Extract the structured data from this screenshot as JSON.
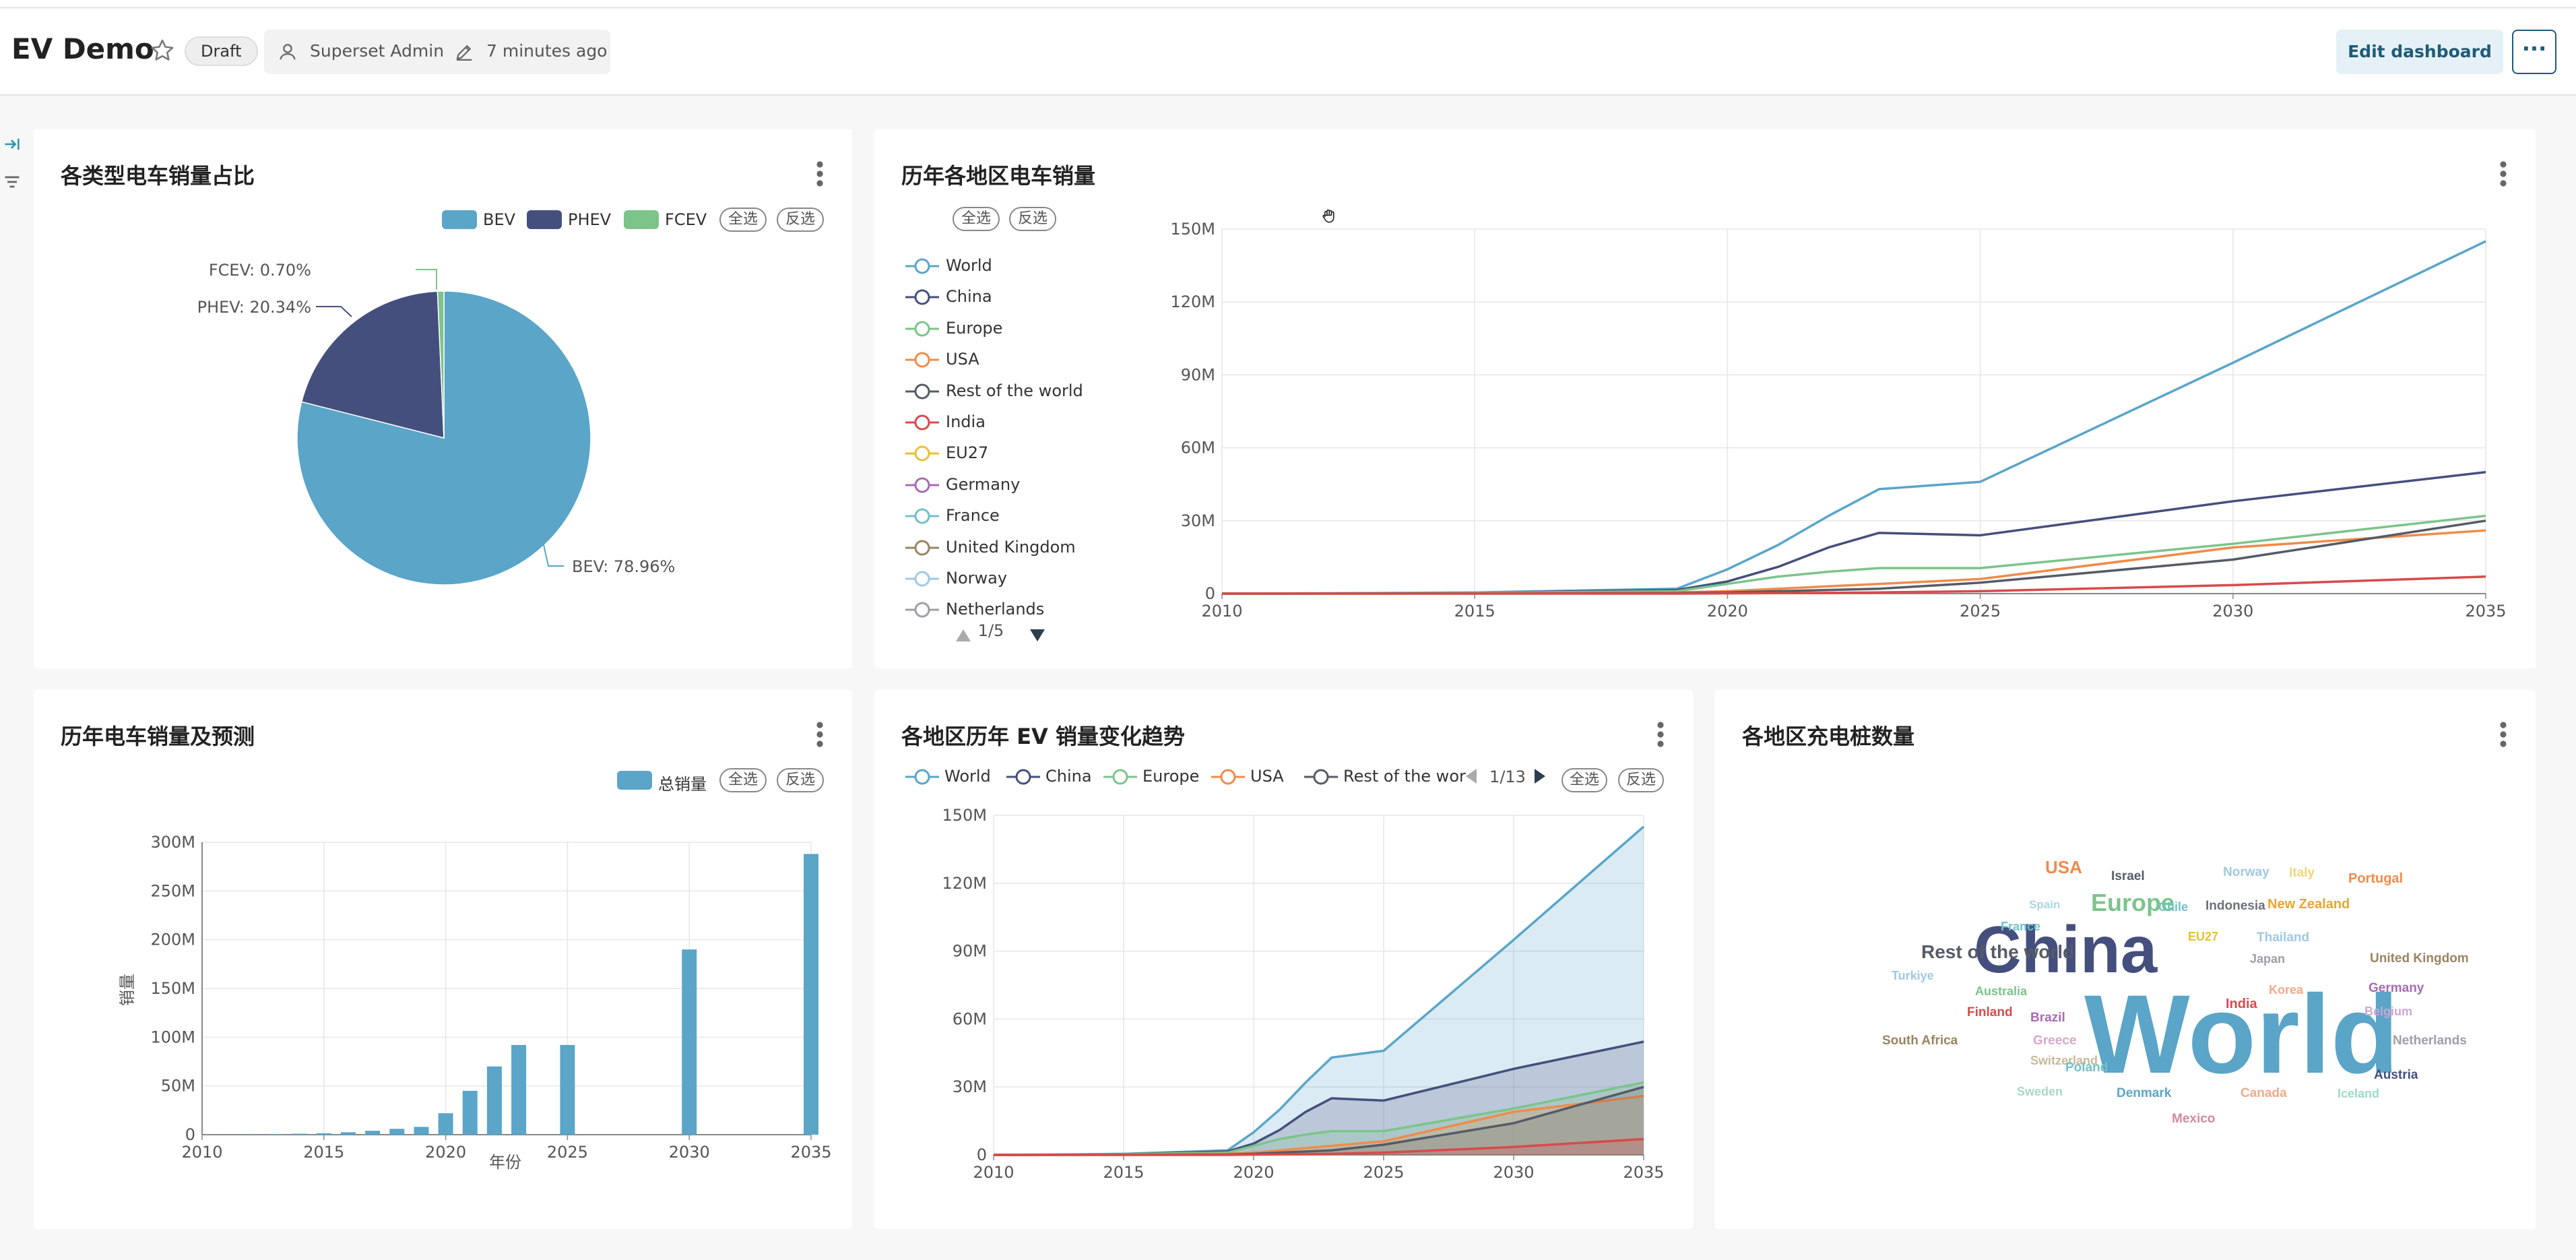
{
  "dashboard": {
    "title": "EV Demo",
    "status": "Draft",
    "owner": "Superset Admin",
    "modified": "7 minutes ago",
    "edit_label": "Edit dashboard",
    "more_label": "···"
  },
  "panels": {
    "pie": {
      "title": "各类型电车销量占比",
      "legend": [
        "BEV",
        "PHEV",
        "FCEV"
      ],
      "select_all": "全选",
      "invert": "反选",
      "labels": [
        "BEV: 78.96%",
        "PHEV: 20.34%",
        "FCEV: 0.70%"
      ],
      "colors": [
        "#5aa5c8",
        "#454f7e",
        "#7cc48a"
      ]
    },
    "line": {
      "title": "历年各地区电车销量",
      "select_all": "全选",
      "invert": "反选",
      "legend": [
        "World",
        "China",
        "Europe",
        "USA",
        "Rest of the world",
        "India",
        "EU27",
        "Germany",
        "France",
        "United Kingdom",
        "Norway",
        "Netherlands"
      ],
      "legend_colors": [
        "#5aa5c8",
        "#454f7e",
        "#7cc48a",
        "#ef8c4a",
        "#555b66",
        "#d94a4a",
        "#e8c131",
        "#a86bb5",
        "#6fc2cb",
        "#9a8462",
        "#9fc9e3",
        "#a29ca8"
      ],
      "pager": "1/5"
    },
    "bar": {
      "title": "历年电车销量及预测",
      "legend": "总销量",
      "select_all": "全选",
      "invert": "反选",
      "ylabel": "销量",
      "xlabel": "年份"
    },
    "area": {
      "title": "各地区历年 EV 销量变化趋势",
      "legend": [
        "World",
        "China",
        "Europe",
        "USA",
        "Rest of the wor"
      ],
      "pager": "1/13",
      "select_all": "全选",
      "invert": "反选"
    },
    "cloud": {
      "title": "各地区充电桩数量",
      "words": [
        {
          "text": "World",
          "color": "#5aa5c8"
        },
        {
          "text": "China",
          "color": "#454f7e"
        },
        {
          "text": "Europe",
          "color": "#7cc48a"
        },
        {
          "text": "USA",
          "color": "#ef8c4a"
        },
        {
          "text": "Rest of the world",
          "color": "#555b66"
        },
        {
          "text": "Israel",
          "color": "#555b66"
        },
        {
          "text": "Norway",
          "color": "#9fc9e3"
        },
        {
          "text": "Italy",
          "color": "#f3d57a"
        },
        {
          "text": "Portugal",
          "color": "#ef8c4a"
        },
        {
          "text": "Spain",
          "color": "#aad8df"
        },
        {
          "text": "Chile",
          "color": "#6fc2cb"
        },
        {
          "text": "Indonesia",
          "color": "#6b6f78"
        },
        {
          "text": "New Zealand",
          "color": "#e8a631"
        },
        {
          "text": "France",
          "color": "#6fc2cb"
        },
        {
          "text": "EU27",
          "color": "#e8c131"
        },
        {
          "text": "Thailand",
          "color": "#9fc9e3"
        },
        {
          "text": "Japan",
          "color": "#a29ca8"
        },
        {
          "text": "United Kingdom",
          "color": "#9a8462"
        },
        {
          "text": "Turkiye",
          "color": "#9fc9e3"
        },
        {
          "text": "Australia",
          "color": "#7cc48a"
        },
        {
          "text": "Korea",
          "color": "#f2a98a"
        },
        {
          "text": "Germany",
          "color": "#a86bb5"
        },
        {
          "text": "Finland",
          "color": "#d94a4a"
        },
        {
          "text": "Brazil",
          "color": "#a86bb5"
        },
        {
          "text": "India",
          "color": "#d94a4a"
        },
        {
          "text": "Belgium",
          "color": "#c9a8d6"
        },
        {
          "text": "South Africa",
          "color": "#9a8462"
        },
        {
          "text": "Greece",
          "color": "#d6a8c9"
        },
        {
          "text": "Netherlands",
          "color": "#a29ca8"
        },
        {
          "text": "Switzerland",
          "color": "#c9b99a"
        },
        {
          "text": "Poland",
          "color": "#6fc2cb"
        },
        {
          "text": "Austria",
          "color": "#454f7e"
        },
        {
          "text": "Sweden",
          "color": "#aad8c5"
        },
        {
          "text": "Denmark",
          "color": "#5aa5c8"
        },
        {
          "text": "Canada",
          "color": "#f2a98a"
        },
        {
          "text": "Iceland",
          "color": "#9fd9c9"
        },
        {
          "text": "Mexico",
          "color": "#d48a9a"
        }
      ]
    }
  },
  "chart_data": [
    {
      "type": "pie",
      "title": "各类型电车销量占比",
      "labels": [
        "BEV",
        "PHEV",
        "FCEV"
      ],
      "values": [
        78.96,
        20.34,
        0.7
      ]
    },
    {
      "type": "line",
      "title": "历年各地区电车销量",
      "x": [
        2010,
        2013,
        2015,
        2019,
        2020,
        2021,
        2022,
        2023,
        2025,
        2030,
        2035
      ],
      "ylim": [
        0,
        150000000
      ],
      "yticks": [
        "0",
        "30M",
        "60M",
        "90M",
        "120M",
        "150M"
      ],
      "xticks": [
        "2010",
        "2015",
        "2020",
        "2025",
        "2030",
        "2035"
      ],
      "series": [
        {
          "name": "World",
          "values": [
            0,
            200000,
            500000,
            2000000,
            10000000,
            20000000,
            32000000,
            43000000,
            46000000,
            95000000,
            145000000
          ]
        },
        {
          "name": "China",
          "values": [
            0,
            100000,
            300000,
            1500000,
            5000000,
            11000000,
            19000000,
            25000000,
            24000000,
            38000000,
            50000000
          ]
        },
        {
          "name": "Europe",
          "values": [
            0,
            100000,
            300000,
            1000000,
            4000000,
            7000000,
            9000000,
            10500000,
            10500000,
            20500000,
            32000000
          ]
        },
        {
          "name": "USA",
          "values": [
            0,
            50000,
            100000,
            500000,
            1000000,
            2000000,
            3000000,
            4000000,
            6000000,
            19000000,
            26000000
          ]
        },
        {
          "name": "Rest of the world",
          "values": [
            0,
            20000,
            50000,
            200000,
            500000,
            1000000,
            1500000,
            2000000,
            4500000,
            14000000,
            30000000
          ]
        },
        {
          "name": "India",
          "values": [
            0,
            0,
            0,
            0,
            100000,
            200000,
            300000,
            500000,
            1000000,
            3500000,
            7000000
          ]
        }
      ]
    },
    {
      "type": "bar",
      "title": "历年电车销量及预测",
      "x": [
        2010,
        2011,
        2012,
        2013,
        2014,
        2015,
        2016,
        2017,
        2018,
        2019,
        2020,
        2021,
        2022,
        2023,
        2025,
        2030,
        2035
      ],
      "values": [
        100000,
        200000,
        400000,
        700000,
        1000000,
        1500000,
        2500000,
        4000000,
        6000000,
        8000000,
        22000000,
        45000000,
        70000000,
        92000000,
        92000000,
        190000000,
        288000000
      ],
      "ylim": [
        0,
        300000000
      ],
      "yticks": [
        "0",
        "50M",
        "100M",
        "150M",
        "200M",
        "250M",
        "300M"
      ],
      "xticks": [
        "2010",
        "2015",
        "2020",
        "2025",
        "2030",
        "2035"
      ],
      "xlabel": "年份",
      "ylabel": "销量"
    },
    {
      "type": "area",
      "title": "各地区历年 EV 销量变化趋势",
      "x": [
        2010,
        2013,
        2015,
        2019,
        2020,
        2021,
        2022,
        2023,
        2025,
        2030,
        2035
      ],
      "ylim": [
        0,
        150000000
      ],
      "yticks": [
        "0",
        "30M",
        "60M",
        "90M",
        "120M",
        "150M"
      ],
      "xticks": [
        "2010",
        "2015",
        "2020",
        "2025",
        "2030",
        "2035"
      ],
      "series": [
        {
          "name": "World",
          "values": [
            0,
            200000,
            500000,
            2000000,
            10000000,
            20000000,
            32000000,
            43000000,
            46000000,
            95000000,
            145000000
          ]
        },
        {
          "name": "China",
          "values": [
            0,
            100000,
            300000,
            1500000,
            5000000,
            11000000,
            19000000,
            25000000,
            24000000,
            38000000,
            50000000
          ]
        },
        {
          "name": "Europe",
          "values": [
            0,
            100000,
            300000,
            1000000,
            4000000,
            7000000,
            9000000,
            10500000,
            10500000,
            20500000,
            32000000
          ]
        },
        {
          "name": "USA",
          "values": [
            0,
            50000,
            100000,
            500000,
            1000000,
            2000000,
            3000000,
            4000000,
            6000000,
            19000000,
            26000000
          ]
        },
        {
          "name": "Rest of the world",
          "values": [
            0,
            20000,
            50000,
            200000,
            500000,
            1000000,
            1500000,
            2000000,
            4500000,
            14000000,
            30000000
          ]
        },
        {
          "name": "India",
          "values": [
            0,
            0,
            0,
            0,
            100000,
            200000,
            300000,
            500000,
            1000000,
            3500000,
            7000000
          ]
        }
      ]
    }
  ]
}
